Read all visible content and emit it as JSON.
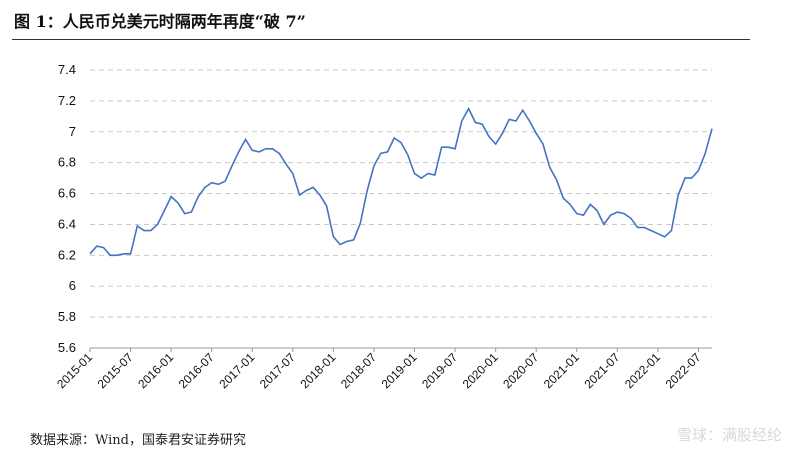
{
  "title": "图 1：人民币兑美元时隔两年再度“破 7”",
  "source": "数据来源：Wind，国泰君安证券研究",
  "watermark": "雪球：满股经纶",
  "chart_data": {
    "type": "line",
    "title": "图 1：人民币兑美元时隔两年再度“破 7”",
    "xlabel": "",
    "ylabel": "",
    "ylim": [
      5.6,
      7.4
    ],
    "yticks": [
      "5.6",
      "5.8",
      "6",
      "6.2",
      "6.4",
      "6.6",
      "6.8",
      "7",
      "7.2",
      "7.4"
    ],
    "xlim": [
      "2015-01",
      "2022-09"
    ],
    "xticks": [
      "2015-01",
      "2015-07",
      "2016-01",
      "2016-07",
      "2017-01",
      "2017-07",
      "2018-01",
      "2018-07",
      "2019-01",
      "2019-07",
      "2020-01",
      "2020-07",
      "2021-01",
      "2021-07",
      "2022-01",
      "2022-07"
    ],
    "grid": true,
    "color": "#4472c4",
    "series": [
      {
        "name": "",
        "x": [
          "2015-01",
          "2015-02",
          "2015-03",
          "2015-04",
          "2015-05",
          "2015-06",
          "2015-07",
          "2015-08",
          "2015-09",
          "2015-10",
          "2015-11",
          "2015-12",
          "2016-01",
          "2016-02",
          "2016-03",
          "2016-04",
          "2016-05",
          "2016-06",
          "2016-07",
          "2016-08",
          "2016-09",
          "2016-10",
          "2016-11",
          "2016-12",
          "2017-01",
          "2017-02",
          "2017-03",
          "2017-04",
          "2017-05",
          "2017-06",
          "2017-07",
          "2017-08",
          "2017-09",
          "2017-10",
          "2017-11",
          "2017-12",
          "2018-01",
          "2018-02",
          "2018-03",
          "2018-04",
          "2018-05",
          "2018-06",
          "2018-07",
          "2018-08",
          "2018-09",
          "2018-10",
          "2018-11",
          "2018-12",
          "2019-01",
          "2019-02",
          "2019-03",
          "2019-04",
          "2019-05",
          "2019-06",
          "2019-07",
          "2019-08",
          "2019-09",
          "2019-10",
          "2019-11",
          "2019-12",
          "2020-01",
          "2020-02",
          "2020-03",
          "2020-04",
          "2020-05",
          "2020-06",
          "2020-07",
          "2020-08",
          "2020-09",
          "2020-10",
          "2020-11",
          "2020-12",
          "2021-01",
          "2021-02",
          "2021-03",
          "2021-04",
          "2021-05",
          "2021-06",
          "2021-07",
          "2021-08",
          "2021-09",
          "2021-10",
          "2021-11",
          "2021-12",
          "2022-01",
          "2022-02",
          "2022-03",
          "2022-04",
          "2022-05",
          "2022-06",
          "2022-07",
          "2022-08",
          "2022-09"
        ],
        "values": [
          6.21,
          6.26,
          6.25,
          6.2,
          6.2,
          6.21,
          6.21,
          6.39,
          6.36,
          6.36,
          6.4,
          6.49,
          6.58,
          6.54,
          6.47,
          6.48,
          6.58,
          6.64,
          6.67,
          6.66,
          6.68,
          6.78,
          6.87,
          6.95,
          6.88,
          6.87,
          6.89,
          6.89,
          6.86,
          6.79,
          6.73,
          6.59,
          6.62,
          6.64,
          6.59,
          6.52,
          6.32,
          6.27,
          6.29,
          6.3,
          6.41,
          6.62,
          6.78,
          6.86,
          6.87,
          6.96,
          6.93,
          6.85,
          6.73,
          6.7,
          6.73,
          6.72,
          6.9,
          6.9,
          6.89,
          7.07,
          7.15,
          7.06,
          7.05,
          6.97,
          6.92,
          6.99,
          7.08,
          7.07,
          7.14,
          7.07,
          6.99,
          6.92,
          6.77,
          6.69,
          6.57,
          6.53,
          6.47,
          6.46,
          6.53,
          6.49,
          6.4,
          6.46,
          6.48,
          6.47,
          6.44,
          6.38,
          6.38,
          6.36,
          6.34,
          6.32,
          6.36,
          6.59,
          6.7,
          6.7,
          6.75,
          6.86,
          7.02
        ]
      }
    ]
  }
}
